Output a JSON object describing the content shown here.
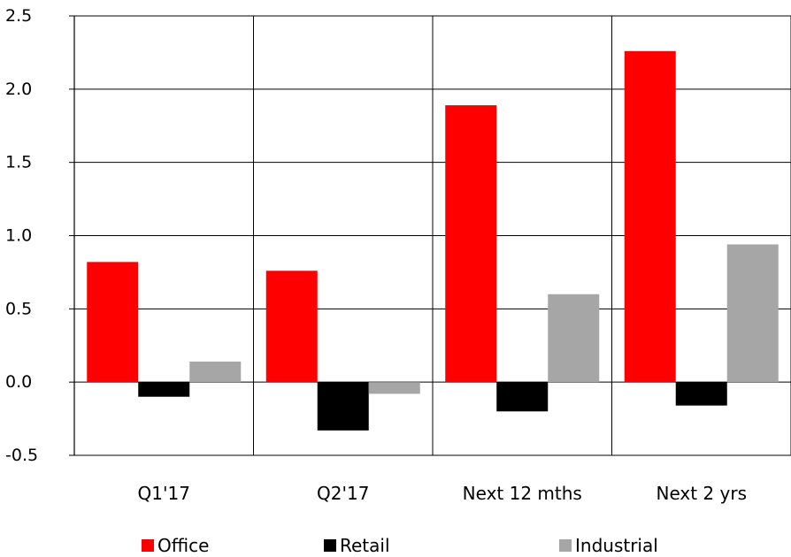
{
  "chart_data": {
    "type": "bar",
    "categories": [
      "Q1'17",
      "Q2'17",
      "Next 12 mths",
      "Next 2 yrs"
    ],
    "series": [
      {
        "name": "Office",
        "color": "#ff0000",
        "values": [
          0.82,
          0.76,
          1.89,
          2.26
        ]
      },
      {
        "name": "Retail",
        "color": "#000000",
        "values": [
          -0.1,
          -0.33,
          -0.2,
          -0.16
        ]
      },
      {
        "name": "Industrial",
        "color": "#a6a6a6",
        "values": [
          0.14,
          -0.08,
          0.6,
          0.94
        ]
      }
    ],
    "ylim": [
      -0.5,
      2.5
    ],
    "yticks": [
      "-0.5",
      "0.0",
      "0.5",
      "1.0",
      "1.5",
      "2.0",
      "2.5"
    ],
    "grid": true,
    "legend": "bottom"
  }
}
